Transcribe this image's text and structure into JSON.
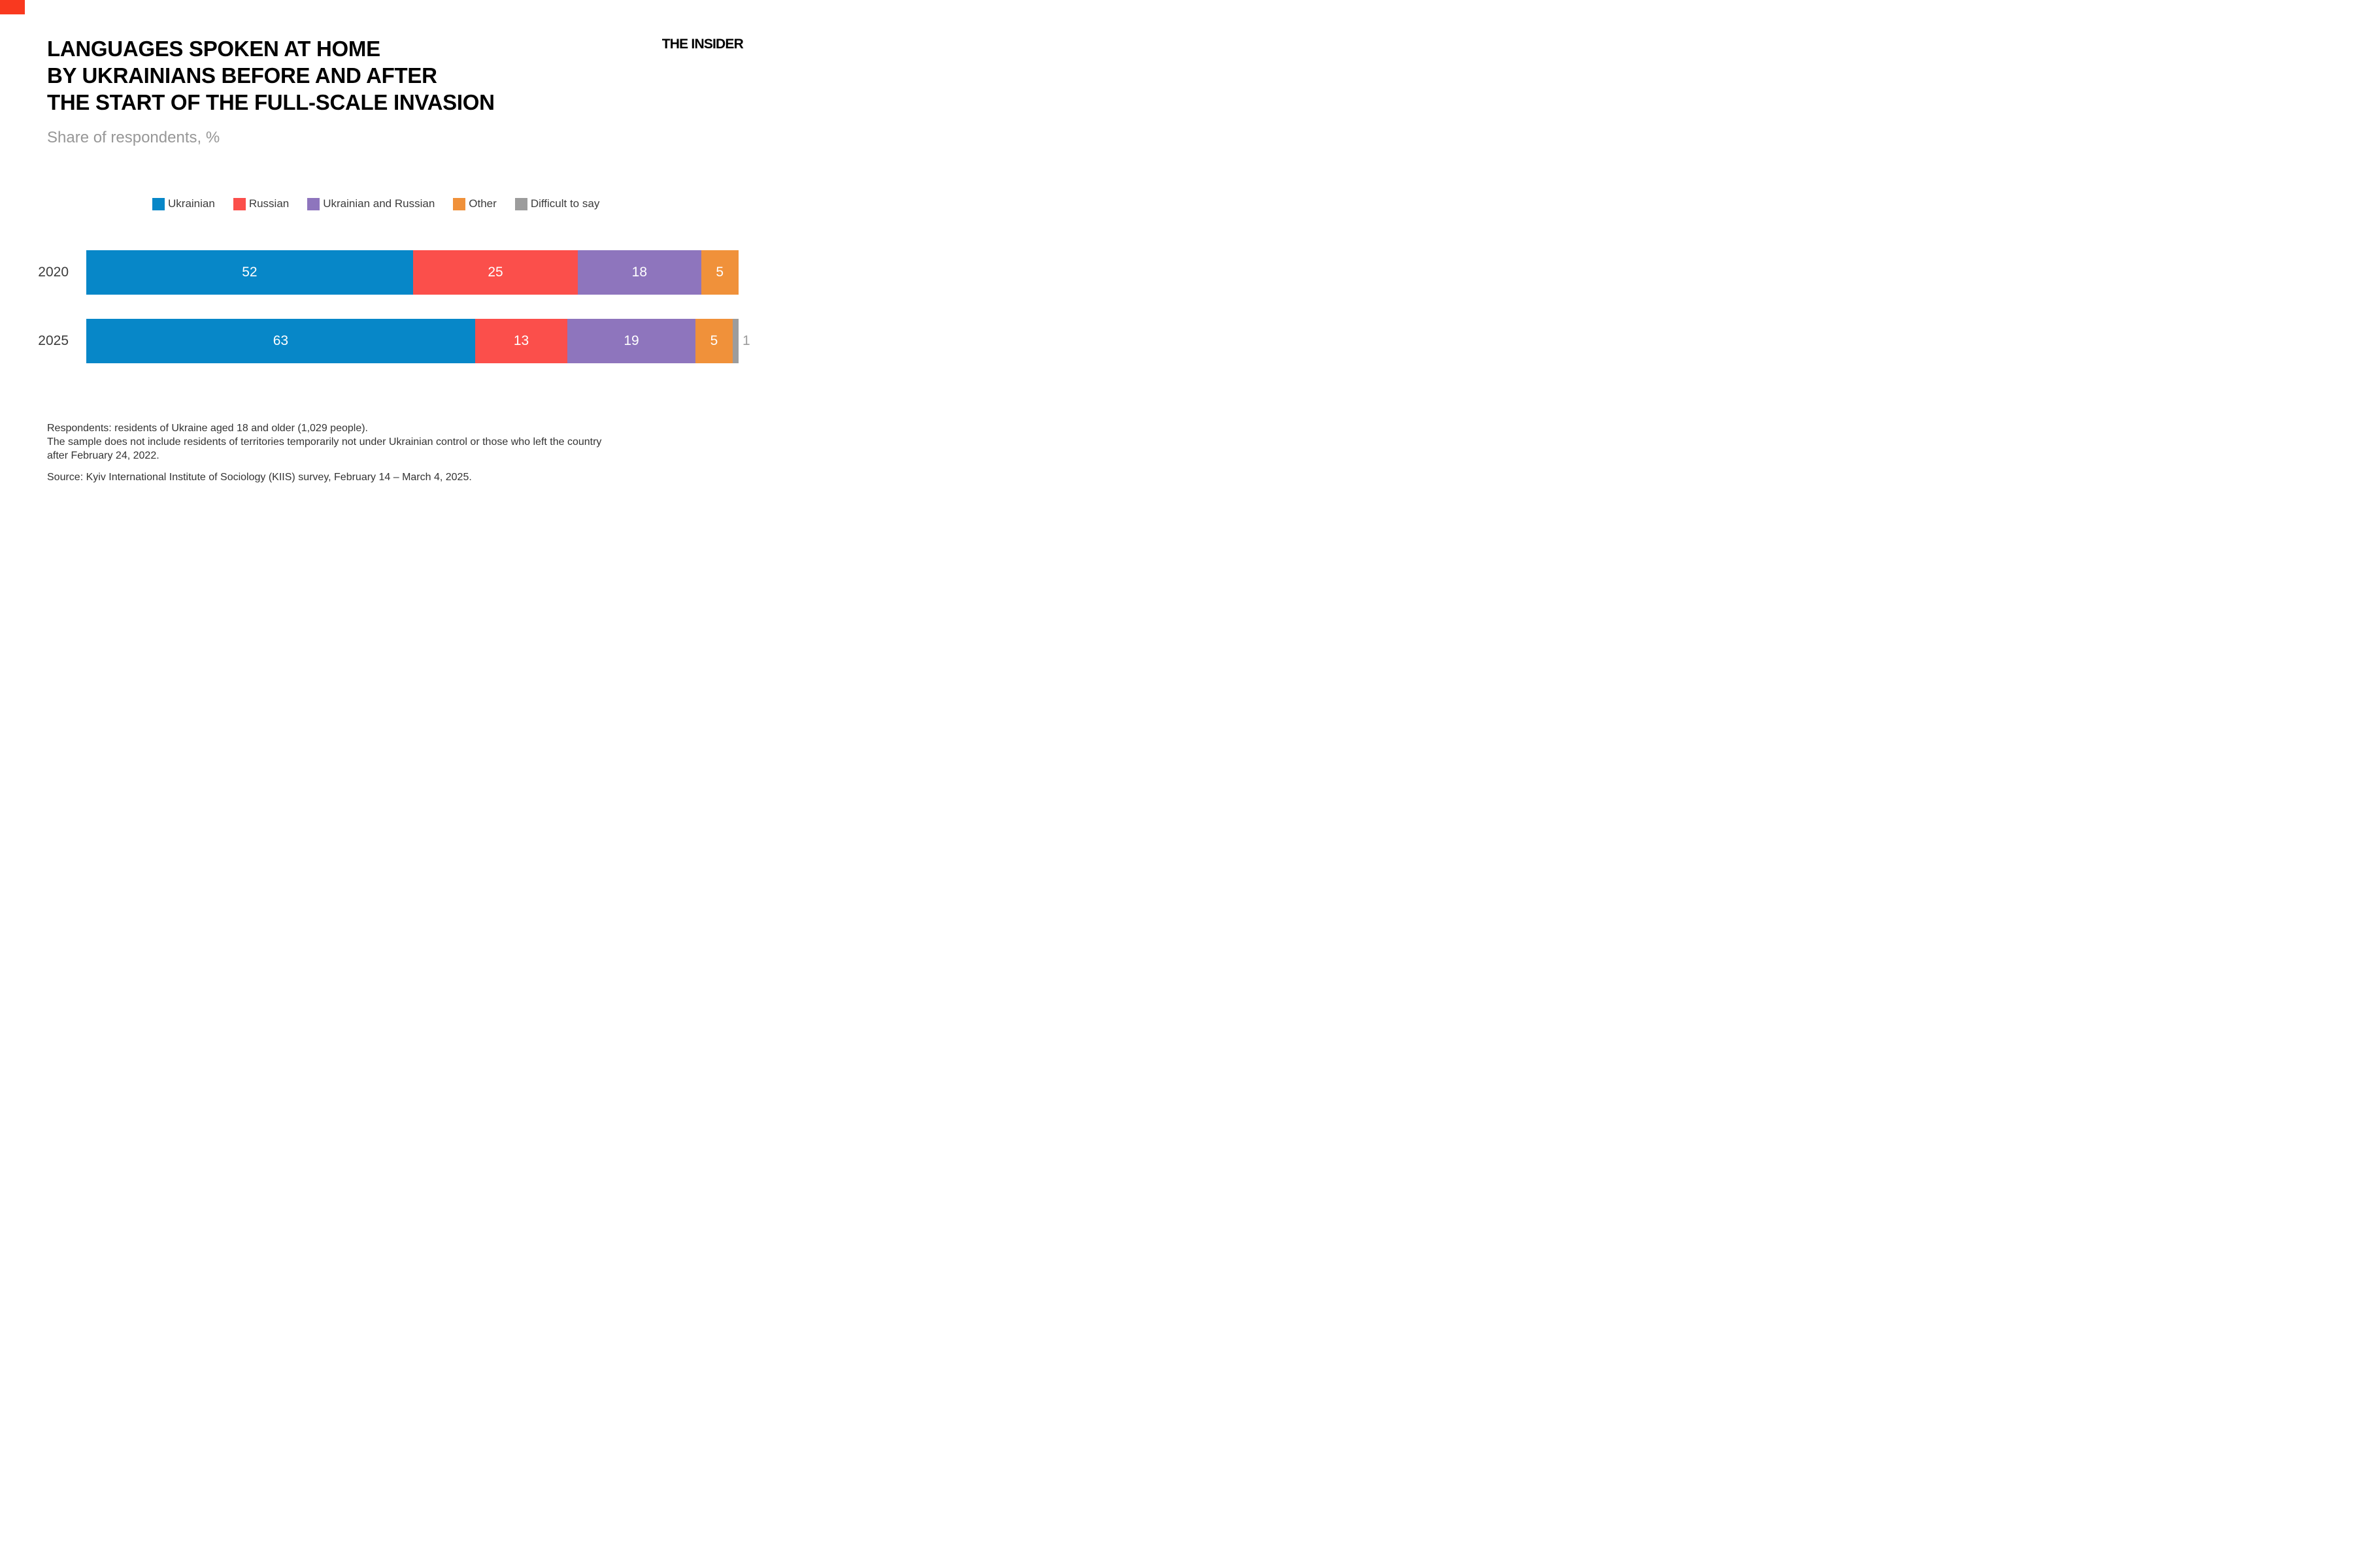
{
  "brand": {
    "logo_text": "THE INSIDER",
    "corner_color": "#f9391f"
  },
  "header": {
    "title_lines": [
      "LANGUAGES SPOKEN AT HOME",
      "BY UKRAINIANS BEFORE AND AFTER",
      "THE START OF THE FULL-SCALE INVASION"
    ],
    "subtitle": "Share of respondents, %"
  },
  "legend": [
    {
      "label": "Ukrainian",
      "color": "#0787c8"
    },
    {
      "label": "Russian",
      "color": "#fb4f4b"
    },
    {
      "label": "Ukrainian and Russian",
      "color": "#8e75bd"
    },
    {
      "label": "Other",
      "color": "#f0913a"
    },
    {
      "label": "Difficult to say",
      "color": "#9c9c9c"
    }
  ],
  "chart_data": {
    "type": "bar",
    "orientation": "horizontal",
    "stacked": true,
    "unit": "%",
    "value_axis": {
      "min": 0,
      "max": 100,
      "hidden": true,
      "grid": false
    },
    "legend_position": "top",
    "categories": [
      "2020",
      "2025"
    ],
    "series": [
      {
        "name": "Ukrainian",
        "color": "#0787c8",
        "values": [
          52,
          63
        ],
        "label_position": "inside"
      },
      {
        "name": "Russian",
        "color": "#fb4f4b",
        "values": [
          25,
          13
        ],
        "label_position": "inside"
      },
      {
        "name": "Ukrainian and Russian",
        "color": "#8e75bd",
        "values": [
          18,
          19
        ],
        "label_position": "inside"
      },
      {
        "name": "Other",
        "color": "#f0913a",
        "values": [
          5,
          5
        ],
        "label_position": "inside"
      },
      {
        "name": "Difficult to say",
        "color": "#9c9c9c",
        "values": [
          0,
          1
        ],
        "label_position": "outside"
      }
    ]
  },
  "footnotes": {
    "respondents": "Respondents: residents of Ukraine aged 18 and older (1,029 people).",
    "sample_line1": "The sample does not include residents of territories temporarily not under Ukrainian control or those who left the country",
    "sample_line2": "after February 24, 2022.",
    "source": "Source: Kyiv International Institute of Sociology (KIIS) survey, February 14 – March 4, 2025."
  }
}
